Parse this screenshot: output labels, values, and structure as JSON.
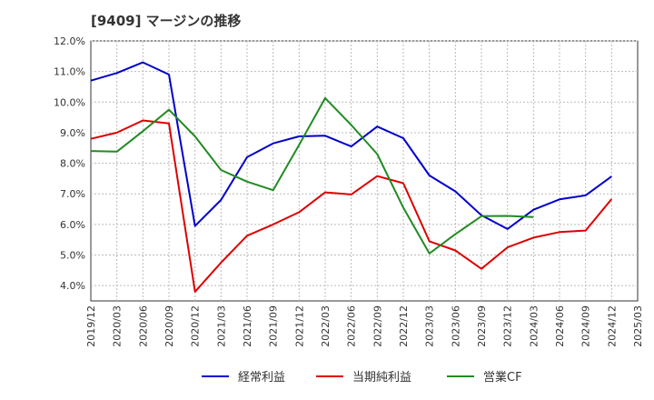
{
  "chart_data": {
    "type": "line",
    "title": "[9409]  マージンの推移",
    "x": [
      "2019/12",
      "2020/03",
      "2020/06",
      "2020/09",
      "2020/12",
      "2021/03",
      "2021/06",
      "2021/09",
      "2021/12",
      "2022/03",
      "2022/06",
      "2022/09",
      "2022/12",
      "2023/03",
      "2023/06",
      "2023/09",
      "2023/12",
      "2024/03",
      "2024/06",
      "2024/09",
      "2024/12",
      "2025/03"
    ],
    "y_ticks": [
      "12.0%",
      "11.0%",
      "10.0%",
      "9.0%",
      "8.0%",
      "7.0%",
      "6.0%",
      "5.0%",
      "4.0%"
    ],
    "ylim": [
      3.5,
      12.0
    ],
    "grid": true,
    "legend_position": "bottom",
    "series": [
      {
        "name": "経常利益",
        "color": "#0000cc",
        "values": [
          10.7,
          10.95,
          11.3,
          10.9,
          5.95,
          6.8,
          8.2,
          8.65,
          8.88,
          8.9,
          8.55,
          9.2,
          8.82,
          7.6,
          7.08,
          6.3,
          5.85,
          6.48,
          6.82,
          6.95,
          7.57,
          null
        ]
      },
      {
        "name": "当期純利益",
        "color": "#dd0000",
        "values": [
          8.8,
          9.0,
          9.4,
          9.3,
          3.8,
          4.75,
          5.63,
          6.0,
          6.4,
          7.05,
          6.98,
          7.58,
          7.35,
          5.45,
          5.15,
          4.55,
          5.25,
          5.57,
          5.75,
          5.8,
          6.83,
          null
        ]
      },
      {
        "name": "営業CF",
        "color": "#228b22",
        "values": [
          8.4,
          8.38,
          9.05,
          9.75,
          8.88,
          7.78,
          7.4,
          7.12,
          8.6,
          10.13,
          9.25,
          8.3,
          6.55,
          5.05,
          5.68,
          6.27,
          6.28,
          6.24,
          null,
          null,
          null,
          null
        ]
      }
    ]
  }
}
